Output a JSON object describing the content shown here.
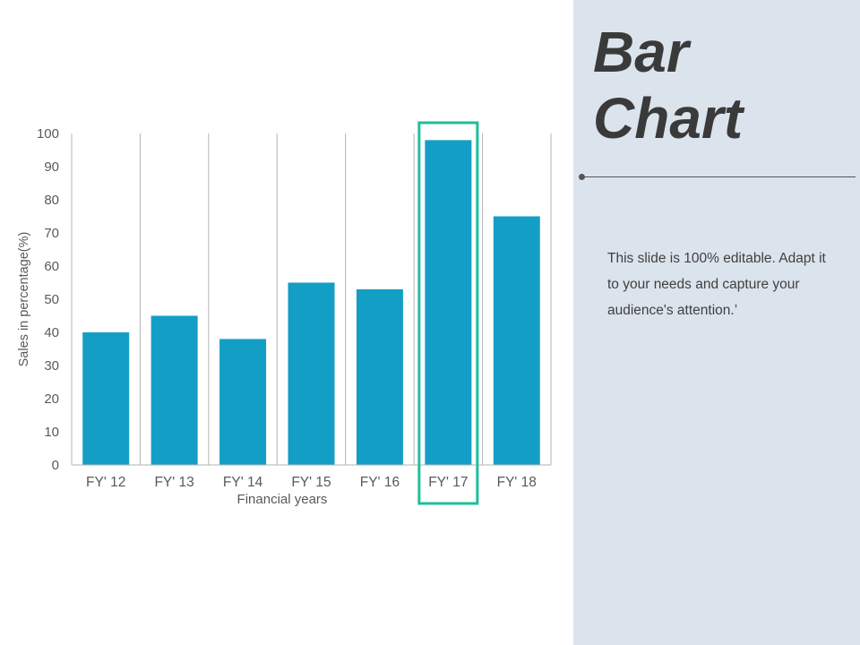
{
  "colors": {
    "panel": "#dbe3ed",
    "bar": "#139fc5",
    "highlight": "#1ebf9a",
    "grid": "#b3b3b3",
    "text": "#595959",
    "title": "#3a3a3a"
  },
  "slide": {
    "title_line1": "Bar",
    "title_line2": "Chart",
    "description": "This slide is 100% editable. Adapt it to your needs and capture your audience's attention.’"
  },
  "chart_data": {
    "type": "bar",
    "categories": [
      "FY' 12",
      "FY' 13",
      "FY' 14",
      "FY' 15",
      "FY' 16",
      "FY' 17",
      "FY' 18"
    ],
    "values": [
      40,
      45,
      38,
      55,
      53,
      98,
      75
    ],
    "xlabel": "Financial years",
    "ylabel": "Sales in percentage(%)",
    "ylim": [
      0,
      100
    ],
    "yticks": [
      0,
      10,
      20,
      30,
      40,
      50,
      60,
      70,
      80,
      90,
      100
    ],
    "grid": "vertical",
    "highlight_category": "FY' 17"
  }
}
